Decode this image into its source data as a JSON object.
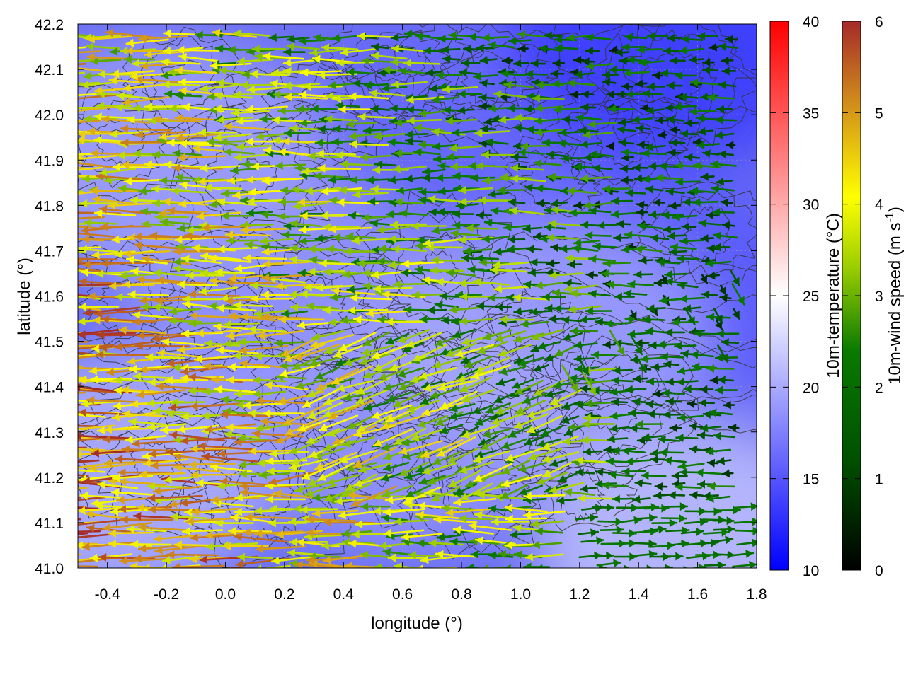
{
  "chart_data": {
    "type": "vector-field",
    "title": "",
    "xlabel": "longitude (°)",
    "ylabel": "latitude (°)",
    "xlim": [
      -0.5,
      1.8
    ],
    "ylim": [
      41.0,
      42.2
    ],
    "xticks": [
      "-0.4",
      "-0.2",
      "0.0",
      "0.2",
      "0.4",
      "0.6",
      "0.8",
      "1.0",
      "1.2",
      "1.4",
      "1.6",
      "1.8"
    ],
    "xtick_values": [
      -0.4,
      -0.2,
      0.0,
      0.2,
      0.4,
      0.6,
      0.8,
      1.0,
      1.2,
      1.4,
      1.6,
      1.8
    ],
    "yticks": [
      "41.0",
      "41.1",
      "41.2",
      "41.3",
      "41.4",
      "41.5",
      "41.6",
      "41.7",
      "41.8",
      "41.9",
      "42.0",
      "42.1",
      "42.2"
    ],
    "ytick_values": [
      41.0,
      41.1,
      41.2,
      41.3,
      41.4,
      41.5,
      41.6,
      41.7,
      41.8,
      41.9,
      42.0,
      42.1,
      42.2
    ],
    "grid": true,
    "background_field": {
      "name": "10m-temperature",
      "unit_label": "10m-temperature (°C)",
      "range": [
        10,
        40
      ],
      "ticks": [
        "10",
        "15",
        "20",
        "25",
        "30",
        "35",
        "40"
      ],
      "tick_values": [
        10,
        15,
        20,
        25,
        30,
        35,
        40
      ],
      "colors": [
        "#0000ff",
        "#ffffff",
        "#ff0000"
      ],
      "regions": [
        {
          "lon": -0.4,
          "lat": 41.2,
          "t": 21
        },
        {
          "lon": -0.2,
          "lat": 41.9,
          "t": 20
        },
        {
          "lon": 0.2,
          "lat": 41.6,
          "t": 19
        },
        {
          "lon": 0.6,
          "lat": 41.3,
          "t": 19
        },
        {
          "lon": 0.9,
          "lat": 42.0,
          "t": 16
        },
        {
          "lon": 1.5,
          "lat": 42.15,
          "t": 13
        },
        {
          "lon": 1.5,
          "lat": 41.6,
          "t": 15
        },
        {
          "lon": 1.6,
          "lat": 41.05,
          "t": 22
        },
        {
          "lon": 1.1,
          "lat": 41.5,
          "t": 20
        }
      ]
    },
    "vector_field": {
      "name": "10m-wind speed",
      "unit_label": "10m-wind speed (m s",
      "unit_sup": "-1",
      "unit_close": ")",
      "range": [
        0,
        6
      ],
      "ticks": [
        "0",
        "1",
        "2",
        "3",
        "4",
        "5",
        "6"
      ],
      "tick_values": [
        0,
        1,
        2,
        3,
        4,
        5,
        6
      ],
      "colors": [
        "#000000",
        "#006400",
        "#7cb800",
        "#ffff00",
        "#e6a000",
        "#a52a2a"
      ],
      "lon_start": -0.48,
      "lon_end": 1.78,
      "lon_step": 0.058,
      "lat_start": 41.0,
      "lat_end": 42.18,
      "lat_step": 0.026,
      "dominant_direction": "westward (easterly wind)",
      "southwest_speed_range": [
        4,
        6
      ],
      "east_speed_range": [
        0.5,
        2.5
      ],
      "southeast_direction": "eastward"
    },
    "contours": {
      "color": "#333333",
      "field": "orography"
    }
  }
}
